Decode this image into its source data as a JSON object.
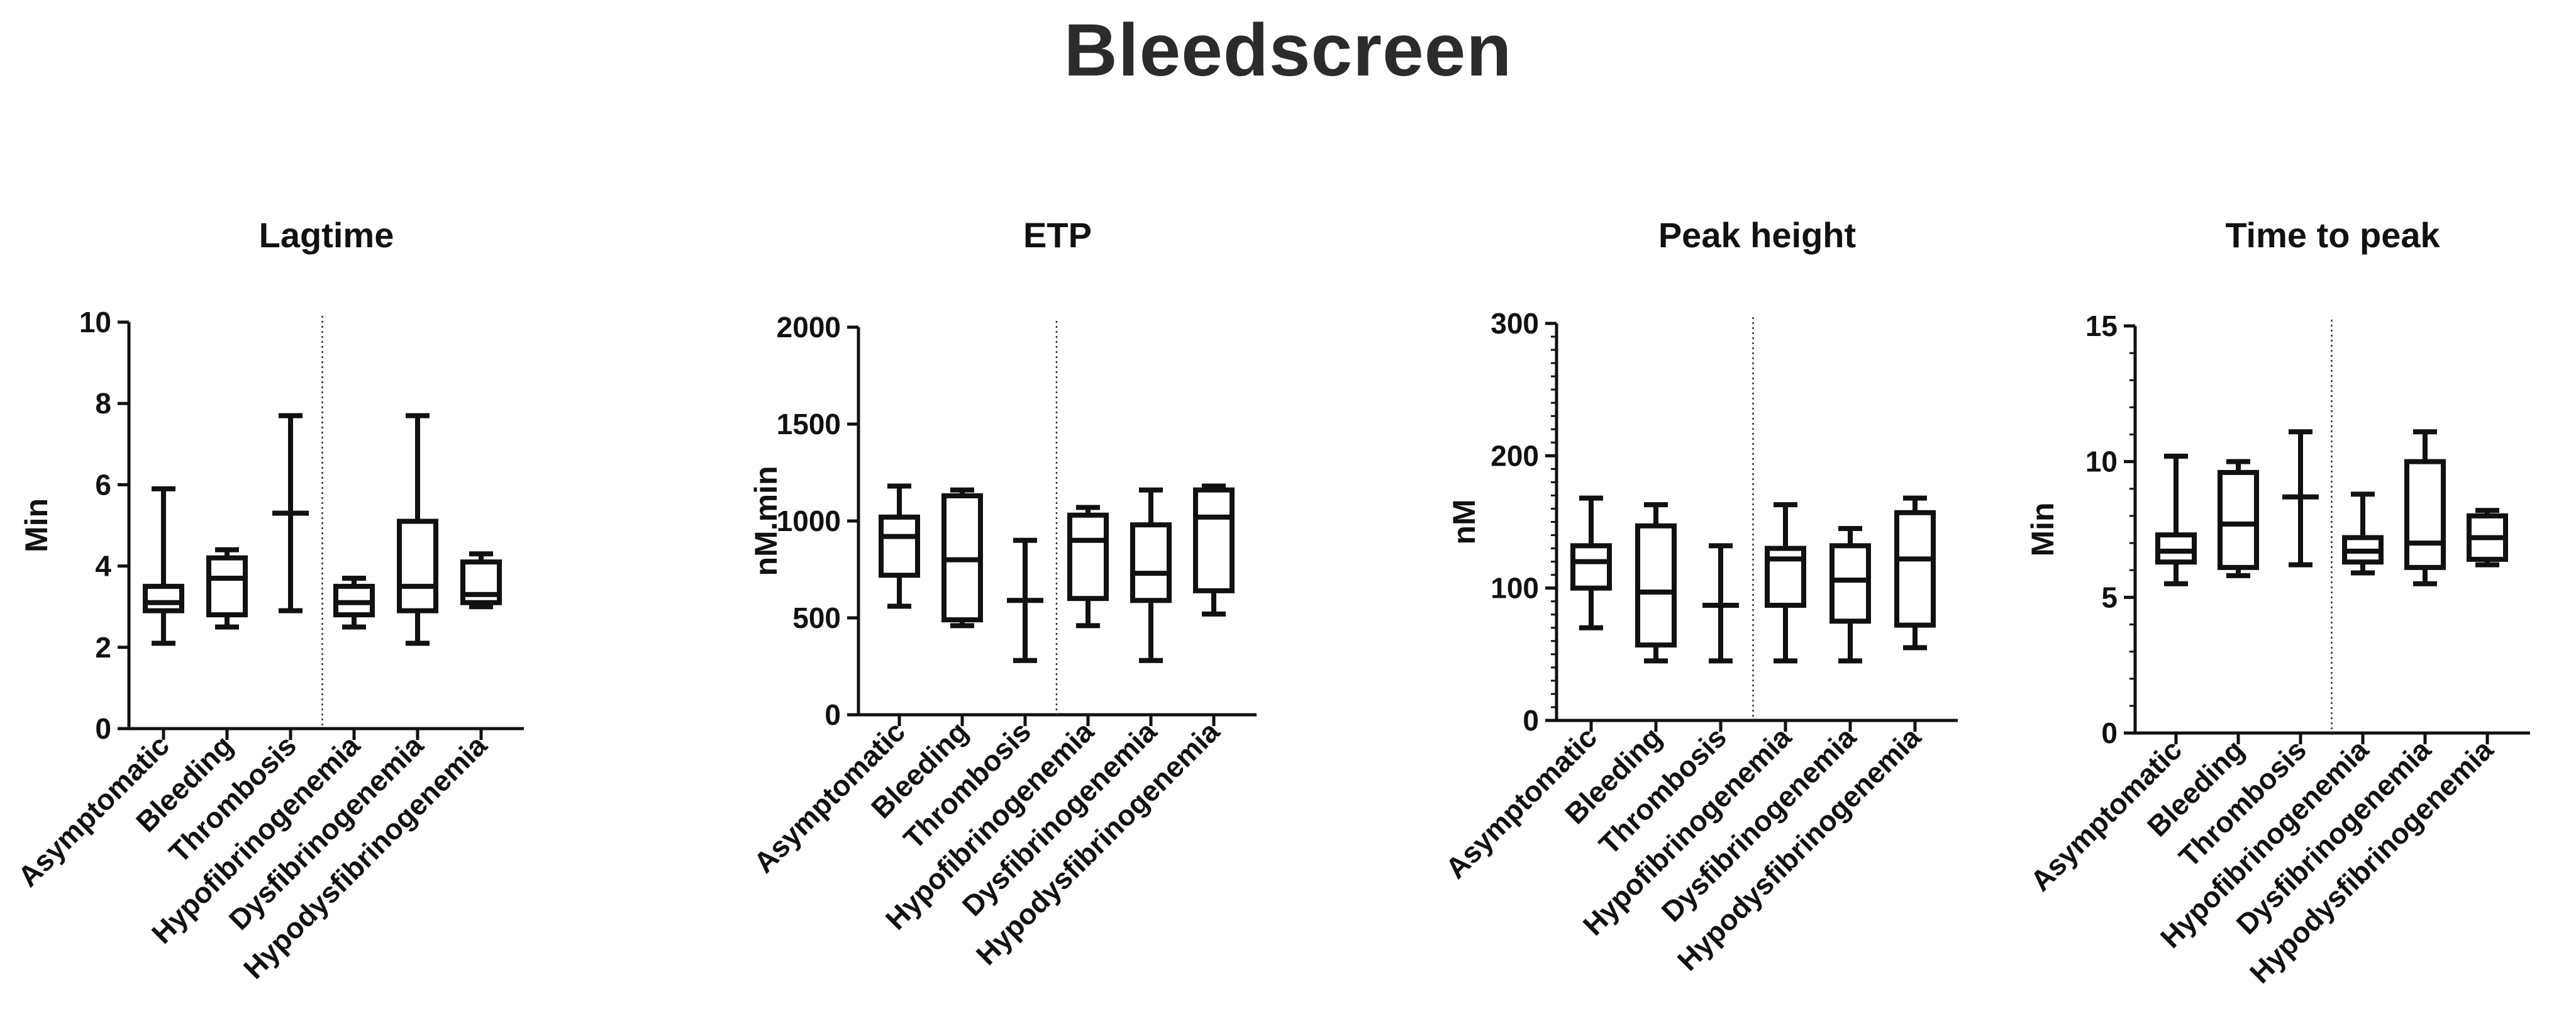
{
  "figure_title": "Bleedscreen",
  "chart_data": [
    {
      "type": "boxplot",
      "title": "Lagtime",
      "ylabel": "Min",
      "ylim": [
        0,
        10
      ],
      "yticks": [
        0,
        2,
        4,
        6,
        8,
        10
      ],
      "minor_ticks_per_major": 0,
      "divider_after_category": 3,
      "categories": [
        "Asymptomatic",
        "Bleeding",
        "Thrombosis",
        "Hypofibrinogenemia",
        "Dysfibrinogenemia",
        "Hypodysfibrinogenemia"
      ],
      "boxes": [
        {
          "min": 2.1,
          "q1": 2.9,
          "median": 3.1,
          "q3": 3.5,
          "max": 5.9
        },
        {
          "min": 2.5,
          "q1": 2.8,
          "median": 3.7,
          "q3": 4.2,
          "max": 4.4
        },
        {
          "min": 2.9,
          "q1": 5.3,
          "median": 5.3,
          "q3": 5.3,
          "max": 7.7
        },
        {
          "min": 2.5,
          "q1": 2.8,
          "median": 3.1,
          "q3": 3.5,
          "max": 3.7
        },
        {
          "min": 2.1,
          "q1": 2.9,
          "median": 3.5,
          "q3": 5.1,
          "max": 7.7
        },
        {
          "min": 3.0,
          "q1": 3.1,
          "median": 3.3,
          "q3": 4.1,
          "max": 4.3
        }
      ]
    },
    {
      "type": "boxplot",
      "title": "ETP",
      "ylabel": "nM.min",
      "ylim": [
        0,
        2000
      ],
      "yticks": [
        0,
        500,
        1000,
        1500,
        2000
      ],
      "minor_ticks_per_major": 0,
      "divider_after_category": 3,
      "categories": [
        "Asymptomatic",
        "Bleeding",
        "Thrombosis",
        "Hypofibrinogenemia",
        "Dysfibrinogenemia",
        "Hypodysfibrinogenemia"
      ],
      "boxes": [
        {
          "min": 560,
          "q1": 720,
          "median": 920,
          "q3": 1020,
          "max": 1180
        },
        {
          "min": 460,
          "q1": 490,
          "median": 800,
          "q3": 1130,
          "max": 1160
        },
        {
          "min": 280,
          "q1": 590,
          "median": 590,
          "q3": 590,
          "max": 900
        },
        {
          "min": 460,
          "q1": 600,
          "median": 900,
          "q3": 1030,
          "max": 1070
        },
        {
          "min": 280,
          "q1": 590,
          "median": 730,
          "q3": 980,
          "max": 1160
        },
        {
          "min": 520,
          "q1": 640,
          "median": 1020,
          "q3": 1160,
          "max": 1180
        }
      ]
    },
    {
      "type": "boxplot",
      "title": "Peak height",
      "ylabel": "nM",
      "ylim": [
        0,
        300
      ],
      "yticks": [
        0,
        100,
        200,
        300
      ],
      "minor_ticks_per_major": 10,
      "divider_after_category": 3,
      "categories": [
        "Asymptomatic",
        "Bleeding",
        "Thrombosis",
        "Hypofibrinogenemia",
        "Dysfibrinogenemia",
        "Hypodysfibrinogenemia"
      ],
      "boxes": [
        {
          "min": 70,
          "q1": 100,
          "median": 120,
          "q3": 132,
          "max": 168
        },
        {
          "min": 45,
          "q1": 57,
          "median": 97,
          "q3": 147,
          "max": 163
        },
        {
          "min": 45,
          "q1": 87,
          "median": 87,
          "q3": 87,
          "max": 132
        },
        {
          "min": 45,
          "q1": 87,
          "median": 122,
          "q3": 130,
          "max": 163
        },
        {
          "min": 45,
          "q1": 75,
          "median": 106,
          "q3": 132,
          "max": 145
        },
        {
          "min": 55,
          "q1": 72,
          "median": 122,
          "q3": 157,
          "max": 168
        }
      ]
    },
    {
      "type": "boxplot",
      "title": "Time to peak",
      "ylabel": "Min",
      "ylim": [
        0,
        15
      ],
      "yticks": [
        0,
        5,
        10,
        15
      ],
      "minor_ticks_per_major": 5,
      "divider_after_category": 3,
      "categories": [
        "Asymptomatic",
        "Bleeding",
        "Thrombosis",
        "Hypofibrinogenemia",
        "Dysfibrinogenemia",
        "Hypodysfibrinogenemia"
      ],
      "boxes": [
        {
          "min": 5.5,
          "q1": 6.3,
          "median": 6.7,
          "q3": 7.3,
          "max": 10.2
        },
        {
          "min": 5.8,
          "q1": 6.1,
          "median": 7.7,
          "q3": 9.6,
          "max": 10.0
        },
        {
          "min": 6.2,
          "q1": 8.7,
          "median": 8.7,
          "q3": 8.7,
          "max": 11.1
        },
        {
          "min": 5.9,
          "q1": 6.3,
          "median": 6.7,
          "q3": 7.2,
          "max": 8.8
        },
        {
          "min": 5.5,
          "q1": 6.1,
          "median": 7.0,
          "q3": 10.0,
          "max": 11.1
        },
        {
          "min": 6.2,
          "q1": 6.4,
          "median": 7.2,
          "q3": 8.0,
          "max": 8.2
        }
      ]
    }
  ]
}
